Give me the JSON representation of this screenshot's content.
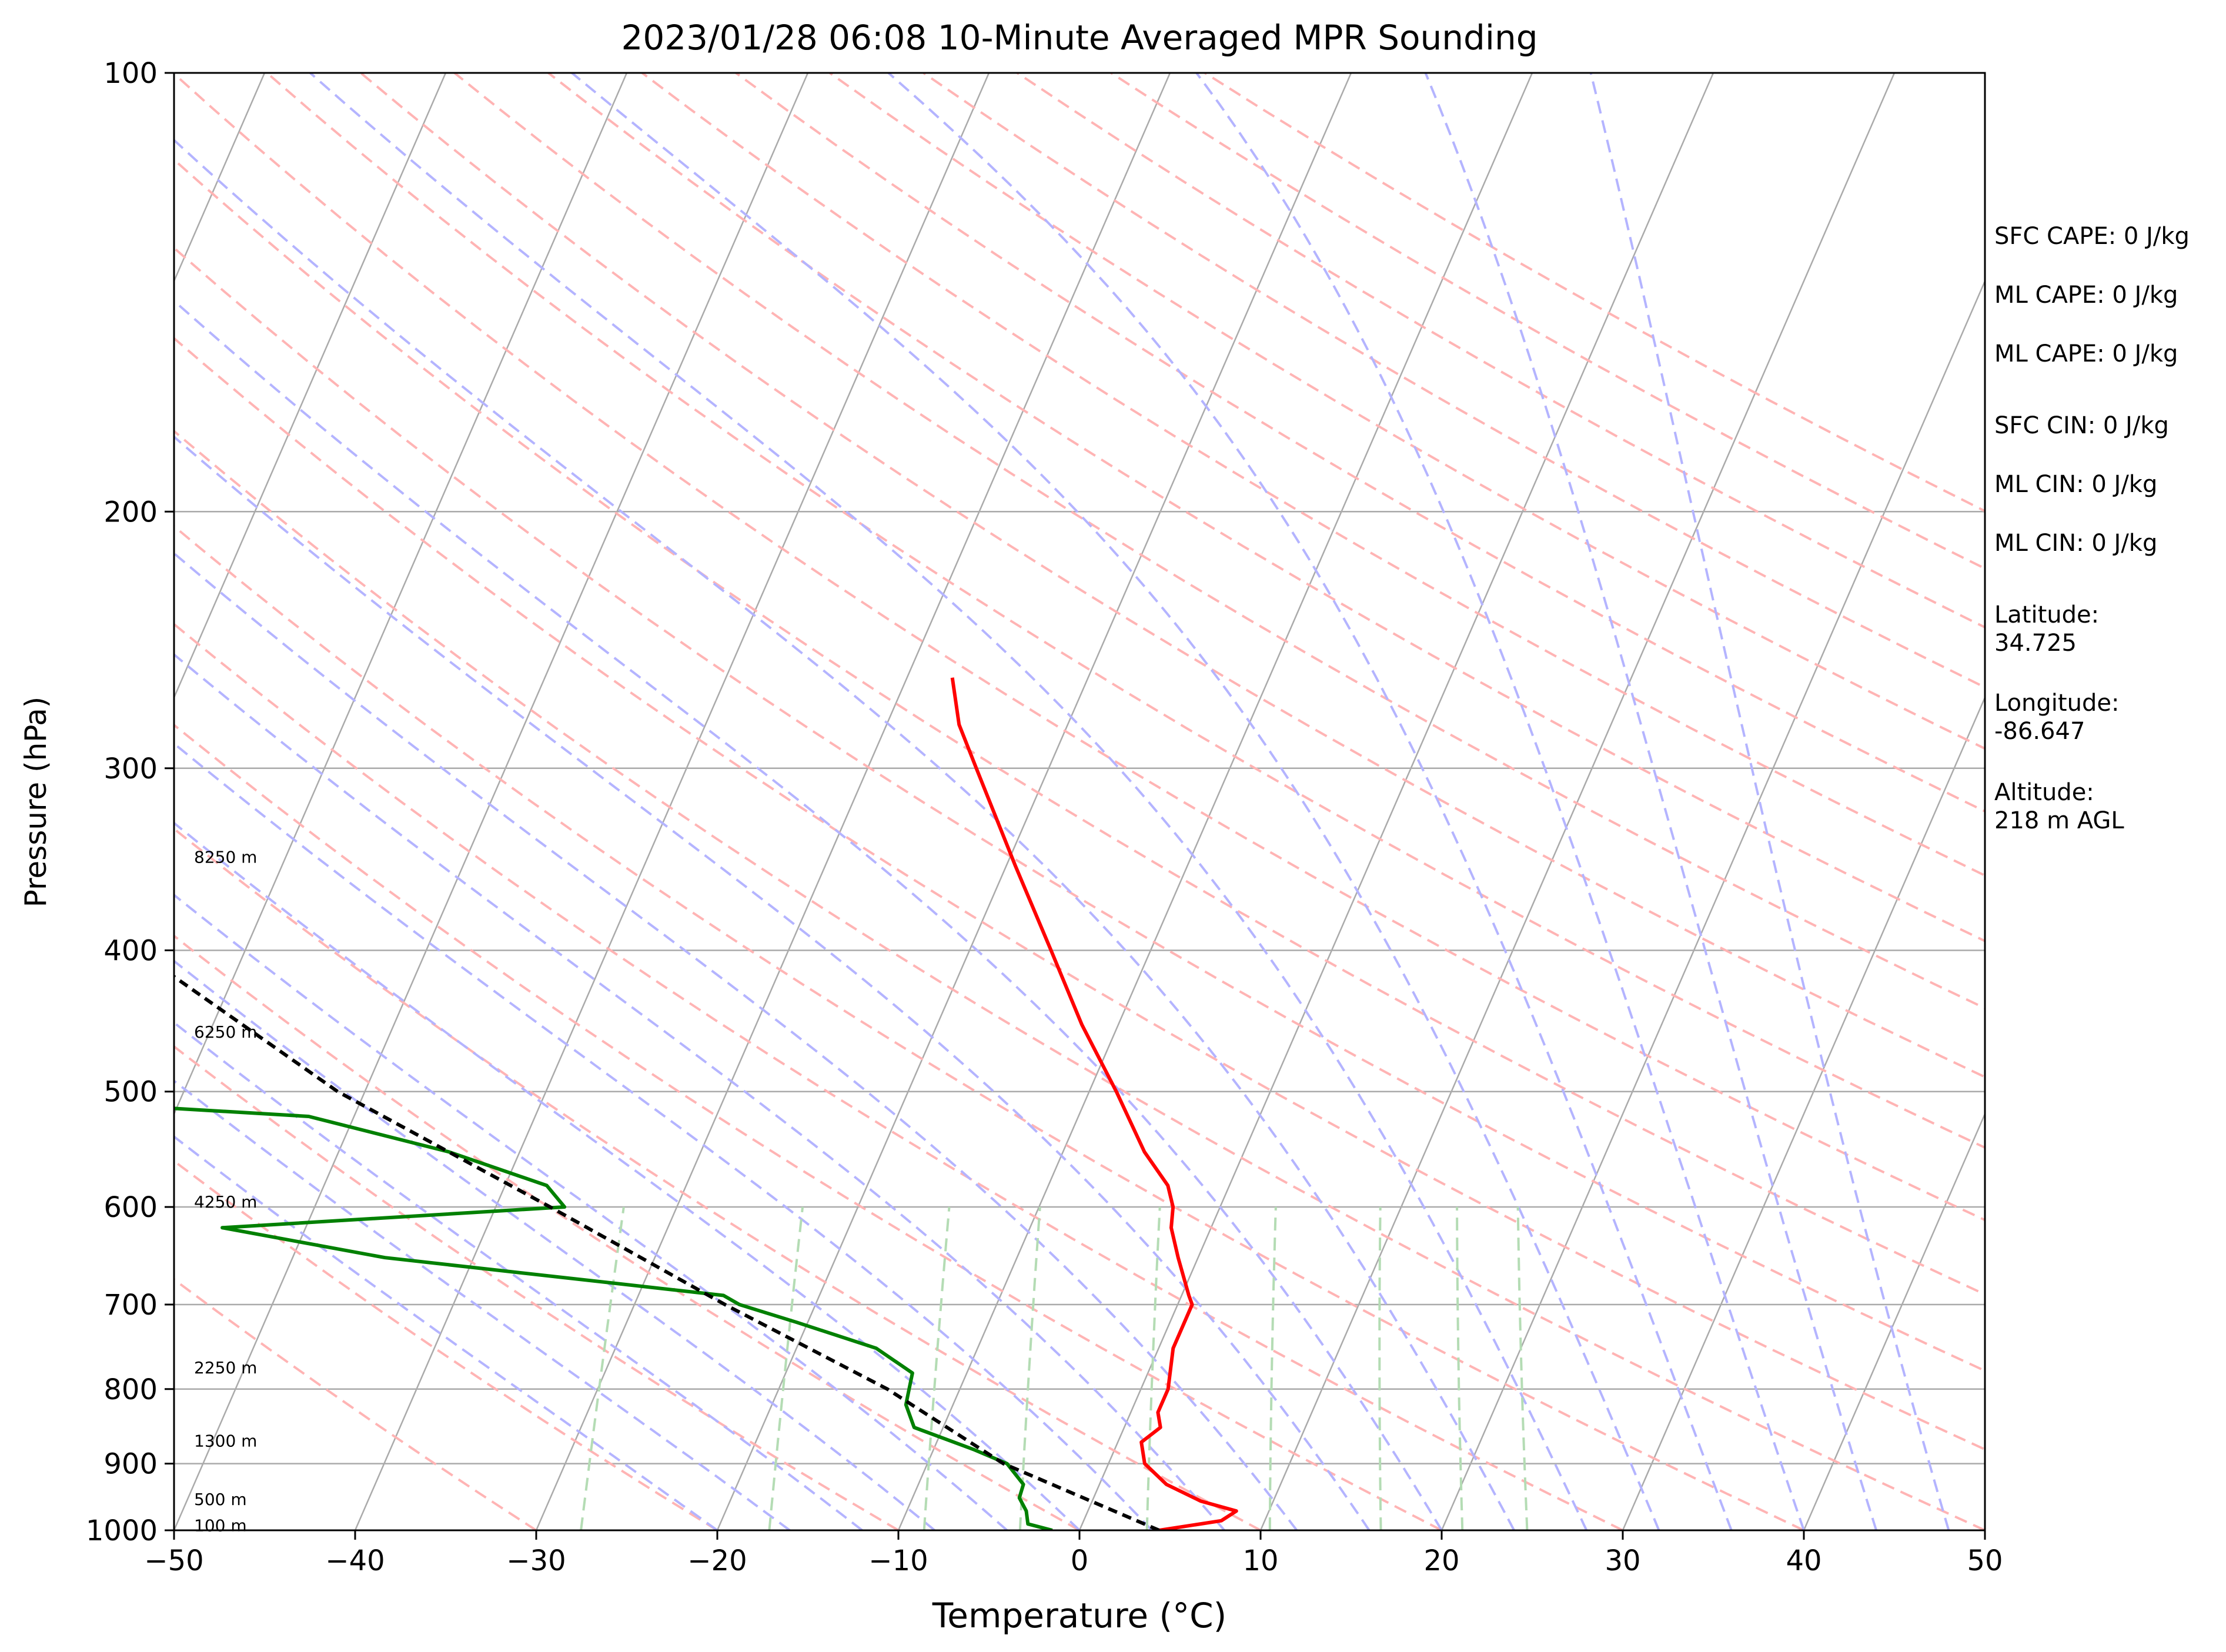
{
  "chart_data": {
    "type": "line",
    "title": "2023/01/28 06:08 10-Minute Averaged MPR Sounding",
    "xlabel": "Temperature (°C)",
    "ylabel": "Pressure (hPa)",
    "xlim": [
      -50,
      50
    ],
    "ylim": [
      1000,
      100
    ],
    "y_scale": "log",
    "skew_t": true,
    "grid": true,
    "x_ticks": [
      -50,
      -40,
      -30,
      -20,
      -10,
      0,
      10,
      20,
      30,
      40,
      50
    ],
    "x_tick_labels": [
      "−50",
      "−40",
      "−30",
      "−20",
      "−10",
      "0",
      "10",
      "20",
      "30",
      "40",
      "50"
    ],
    "y_ticks": [
      100,
      200,
      300,
      400,
      500,
      600,
      700,
      800,
      900,
      1000
    ],
    "y_tick_labels": [
      "100",
      "200",
      "300",
      "400",
      "500",
      "600",
      "700",
      "800",
      "900",
      "1000"
    ],
    "series": [
      {
        "role": "temperature",
        "color": "#ff0000",
        "p": [
          1000,
          985,
          970,
          955,
          930,
          900,
          870,
          850,
          830,
          800,
          750,
          700,
          690,
          650,
          620,
          600,
          580,
          550,
          500,
          450,
          400,
          350,
          300,
          280,
          260
        ],
        "t": [
          4.4,
          7.6,
          8.2,
          6.0,
          3.7,
          2.0,
          1.3,
          2.0,
          1.5,
          1.5,
          0.8,
          0.8,
          0.4,
          -1.1,
          -2.2,
          -2.6,
          -3.4,
          -5.5,
          -8.5,
          -12.0,
          -15.5,
          -19.5,
          -24.0,
          -26.0,
          -27.5
        ]
      },
      {
        "role": "dewpoint",
        "color": "#008000",
        "p": [
          1000,
          990,
          970,
          950,
          930,
          900,
          880,
          850,
          820,
          800,
          780,
          750,
          720,
          700,
          690,
          650,
          620,
          600,
          580,
          550,
          520,
          510
        ],
        "t": [
          -1.5,
          -3.0,
          -3.4,
          -4.1,
          -4.2,
          -5.6,
          -7.8,
          -11.6,
          -12.6,
          -12.8,
          -13.0,
          -15.6,
          -20.6,
          -24.2,
          -25.3,
          -44.9,
          -54.6,
          -36.2,
          -37.7,
          -43.9,
          -52.5,
          -64.2
        ]
      },
      {
        "role": "parcel",
        "color": "#000000",
        "dashed": true,
        "p": [
          1000,
          900,
          800,
          700,
          600,
          500,
          400,
          300,
          270
        ],
        "t": [
          4.4,
          -5.8,
          -14.0,
          -25.0,
          -37.0,
          -51.5,
          -66.0,
          -81.0,
          -86.0
        ]
      }
    ],
    "height_labels": [
      {
        "text": "100 m",
        "p": 992
      },
      {
        "text": "500 m",
        "p": 952
      },
      {
        "text": "1300 m",
        "p": 868
      },
      {
        "text": "2250 m",
        "p": 773
      },
      {
        "text": "4250 m",
        "p": 595
      },
      {
        "text": "6250 m",
        "p": 455
      },
      {
        "text": "8250 m",
        "p": 345
      }
    ],
    "background_lines": {
      "isotherms_color": "#aaaaaa",
      "dry_adiabats_color": "#ffb4b4",
      "moist_adiabats_color": "#b4b4ff",
      "mixing_ratio_color": "#b4dcb4"
    }
  },
  "indices": [
    "SFC CAPE: 0 J/kg",
    "ML CAPE: 0 J/kg",
    "ML CAPE: 0 J/kg",
    "SFC CIN: 0 J/kg",
    "ML CIN: 0 J/kg",
    "ML CIN: 0 J/kg"
  ],
  "location": {
    "latitude_label": "Latitude:",
    "latitude_value": "34.725",
    "longitude_label": "Longitude:",
    "longitude_value": "-86.647",
    "altitude_label": "Altitude:",
    "altitude_value": "218 m AGL"
  }
}
